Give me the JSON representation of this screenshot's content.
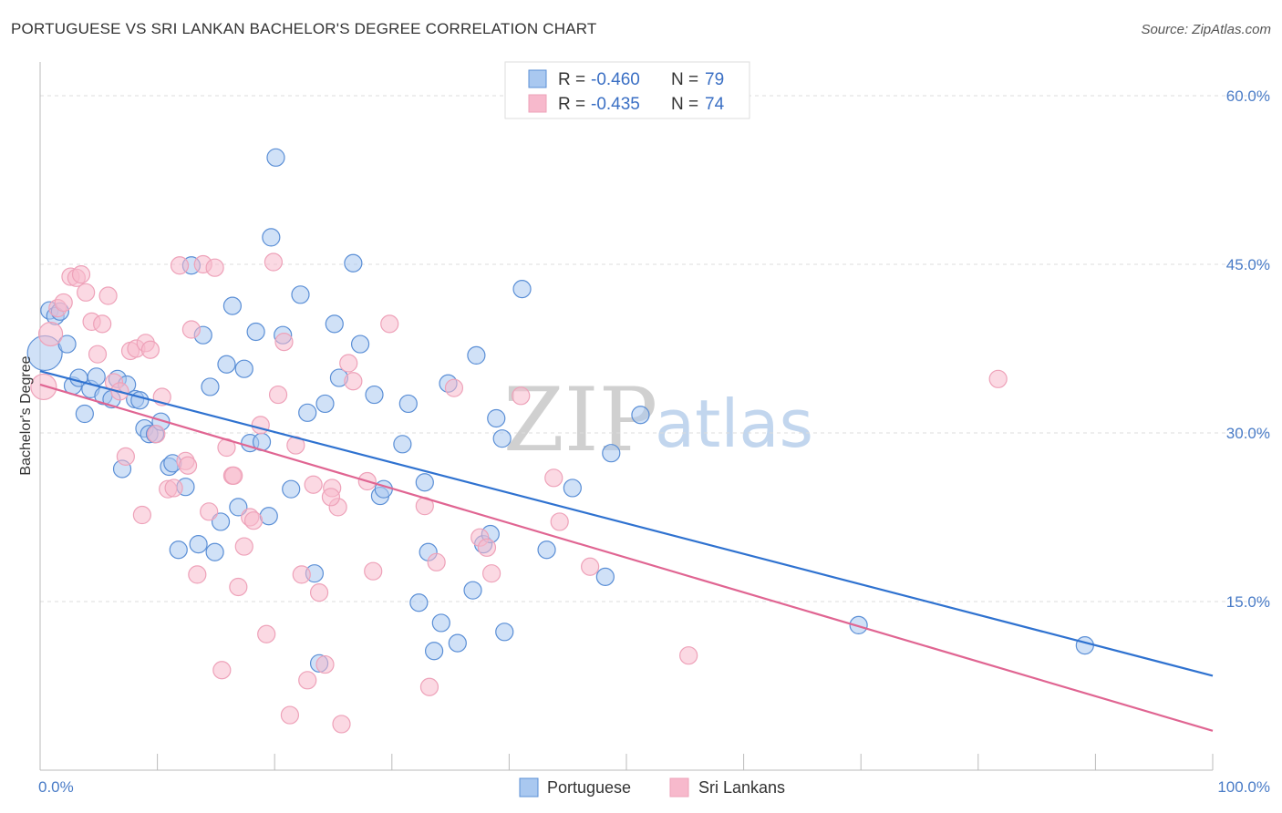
{
  "title": "PORTUGUESE VS SRI LANKAN BACHELOR'S DEGREE CORRELATION CHART",
  "source": "Source: ZipAtlas.com",
  "watermark": {
    "zip": "ZIP",
    "atlas": "atlas"
  },
  "legend": {
    "r_label": "R =",
    "n_label": "N =",
    "rows": [
      {
        "r": "-0.460",
        "n": "79",
        "color": "#a9c8f0"
      },
      {
        "r": "-0.435",
        "n": "74",
        "color": "#f7b9cc"
      }
    ]
  },
  "chart_data": {
    "type": "scatter",
    "title": "PORTUGUESE VS SRI LANKAN BACHELOR'S DEGREE CORRELATION CHART",
    "xlabel": "",
    "ylabel": "Bachelor's Degree",
    "xlim": [
      0,
      100
    ],
    "ylim": [
      0,
      63
    ],
    "x_tick_labels": [
      {
        "value": 0,
        "label": "0.0%"
      },
      {
        "value": 100,
        "label": "100.0%"
      }
    ],
    "y_tick_labels": [
      {
        "value": 15,
        "label": "15.0%"
      },
      {
        "value": 30,
        "label": "30.0%"
      },
      {
        "value": 45,
        "label": "45.0%"
      },
      {
        "value": 60,
        "label": "60.0%"
      }
    ],
    "grid": "horizontal dashed",
    "legend_position": "top-center",
    "series": [
      {
        "name": "Portuguese",
        "color": "#5b8fd6",
        "fill": "#a9c8f0",
        "trend": {
          "x": [
            0,
            100
          ],
          "y": [
            35.5,
            8.4
          ],
          "color": "#2f72d0"
        },
        "points": [
          [
            0.4,
            37.1
          ],
          [
            0.8,
            40.9
          ],
          [
            1.3,
            40.4
          ],
          [
            1.7,
            40.8
          ],
          [
            2.3,
            37.9
          ],
          [
            2.8,
            34.2
          ],
          [
            3.3,
            34.9
          ],
          [
            3.8,
            31.7
          ],
          [
            4.3,
            33.9
          ],
          [
            4.8,
            35.0
          ],
          [
            5.4,
            33.3
          ],
          [
            6.1,
            33.0
          ],
          [
            6.6,
            34.8
          ],
          [
            7.0,
            26.8
          ],
          [
            7.4,
            34.3
          ],
          [
            8.1,
            33.0
          ],
          [
            8.5,
            32.9
          ],
          [
            8.9,
            30.4
          ],
          [
            9.3,
            29.9
          ],
          [
            9.8,
            29.9
          ],
          [
            10.3,
            31.0
          ],
          [
            11.0,
            27.0
          ],
          [
            11.3,
            27.3
          ],
          [
            11.8,
            19.6
          ],
          [
            12.4,
            25.2
          ],
          [
            12.9,
            44.9
          ],
          [
            13.5,
            20.1
          ],
          [
            13.9,
            38.7
          ],
          [
            14.5,
            34.1
          ],
          [
            14.9,
            19.4
          ],
          [
            15.4,
            22.1
          ],
          [
            15.9,
            36.1
          ],
          [
            16.4,
            41.3
          ],
          [
            16.9,
            23.4
          ],
          [
            17.4,
            35.7
          ],
          [
            17.9,
            29.1
          ],
          [
            18.4,
            39.0
          ],
          [
            18.9,
            29.2
          ],
          [
            19.5,
            22.6
          ],
          [
            19.7,
            47.4
          ],
          [
            20.1,
            54.5
          ],
          [
            20.7,
            38.7
          ],
          [
            21.4,
            25.0
          ],
          [
            22.2,
            42.3
          ],
          [
            22.8,
            31.8
          ],
          [
            23.4,
            17.5
          ],
          [
            23.8,
            9.5
          ],
          [
            24.3,
            32.6
          ],
          [
            25.1,
            39.7
          ],
          [
            25.5,
            34.9
          ],
          [
            26.7,
            45.1
          ],
          [
            27.3,
            37.9
          ],
          [
            28.5,
            33.4
          ],
          [
            29.0,
            24.4
          ],
          [
            29.3,
            25.0
          ],
          [
            30.9,
            29.0
          ],
          [
            31.4,
            32.6
          ],
          [
            32.3,
            14.9
          ],
          [
            32.8,
            25.6
          ],
          [
            33.1,
            19.4
          ],
          [
            33.6,
            10.6
          ],
          [
            34.2,
            13.1
          ],
          [
            34.8,
            34.4
          ],
          [
            35.6,
            11.3
          ],
          [
            36.9,
            16.0
          ],
          [
            37.2,
            36.9
          ],
          [
            37.8,
            20.1
          ],
          [
            38.4,
            21.0
          ],
          [
            38.9,
            31.3
          ],
          [
            39.4,
            29.5
          ],
          [
            39.6,
            12.3
          ],
          [
            41.1,
            42.8
          ],
          [
            43.2,
            19.6
          ],
          [
            45.4,
            25.1
          ],
          [
            48.2,
            17.2
          ],
          [
            48.7,
            28.2
          ],
          [
            51.2,
            31.6
          ],
          [
            69.8,
            12.9
          ],
          [
            89.1,
            11.1
          ]
        ]
      },
      {
        "name": "Sri Lankans",
        "color": "#eea2b9",
        "fill": "#f7b9cc",
        "trend": {
          "x": [
            0,
            100
          ],
          "y": [
            34.3,
            3.5
          ],
          "color": "#e06592"
        },
        "points": [
          [
            0.3,
            34.1
          ],
          [
            0.9,
            38.8
          ],
          [
            1.5,
            41.1
          ],
          [
            2.0,
            41.6
          ],
          [
            2.6,
            43.9
          ],
          [
            3.1,
            43.8
          ],
          [
            3.5,
            44.1
          ],
          [
            3.9,
            42.5
          ],
          [
            4.4,
            39.9
          ],
          [
            4.9,
            37.0
          ],
          [
            5.3,
            39.7
          ],
          [
            5.8,
            42.2
          ],
          [
            6.3,
            34.5
          ],
          [
            6.8,
            33.7
          ],
          [
            7.3,
            27.9
          ],
          [
            7.7,
            37.3
          ],
          [
            8.2,
            37.5
          ],
          [
            8.7,
            22.7
          ],
          [
            9.0,
            38.0
          ],
          [
            9.4,
            37.4
          ],
          [
            9.9,
            29.9
          ],
          [
            10.4,
            33.2
          ],
          [
            10.9,
            25.0
          ],
          [
            11.4,
            25.1
          ],
          [
            11.9,
            44.9
          ],
          [
            12.4,
            27.5
          ],
          [
            12.9,
            39.2
          ],
          [
            13.4,
            17.4
          ],
          [
            13.9,
            45.0
          ],
          [
            14.4,
            23.0
          ],
          [
            14.9,
            44.7
          ],
          [
            15.5,
            8.9
          ],
          [
            15.9,
            28.7
          ],
          [
            16.4,
            26.2
          ],
          [
            16.9,
            16.3
          ],
          [
            17.4,
            19.9
          ],
          [
            17.9,
            22.5
          ],
          [
            18.2,
            22.2
          ],
          [
            18.8,
            30.7
          ],
          [
            19.3,
            12.1
          ],
          [
            19.9,
            45.2
          ],
          [
            20.3,
            33.4
          ],
          [
            20.8,
            38.1
          ],
          [
            21.3,
            4.9
          ],
          [
            21.8,
            28.9
          ],
          [
            22.3,
            17.4
          ],
          [
            22.8,
            8.0
          ],
          [
            23.3,
            25.4
          ],
          [
            23.8,
            15.8
          ],
          [
            24.3,
            9.4
          ],
          [
            24.9,
            25.1
          ],
          [
            25.4,
            23.4
          ],
          [
            25.7,
            4.1
          ],
          [
            26.3,
            36.2
          ],
          [
            26.7,
            34.6
          ],
          [
            27.9,
            25.7
          ],
          [
            28.4,
            17.7
          ],
          [
            29.8,
            39.7
          ],
          [
            32.8,
            23.5
          ],
          [
            33.2,
            7.4
          ],
          [
            33.8,
            18.5
          ],
          [
            35.3,
            34.0
          ],
          [
            37.5,
            20.7
          ],
          [
            38.1,
            19.8
          ],
          [
            38.5,
            17.5
          ],
          [
            41.0,
            33.3
          ],
          [
            43.8,
            26.0
          ],
          [
            44.3,
            22.1
          ],
          [
            46.9,
            18.1
          ],
          [
            55.3,
            10.2
          ],
          [
            81.7,
            34.8
          ],
          [
            24.8,
            24.3
          ],
          [
            16.5,
            26.2
          ],
          [
            12.6,
            27.1
          ]
        ]
      }
    ]
  },
  "bottom_legend": [
    "Portuguese",
    "Sri Lankans"
  ]
}
